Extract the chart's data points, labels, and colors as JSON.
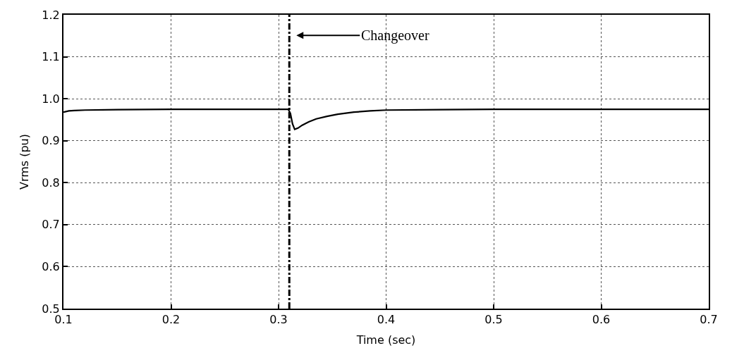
{
  "chart_data": {
    "type": "line",
    "xlabel": "Time (sec)",
    "ylabel": "Vrms (pu)",
    "x": [
      0.1,
      0.105,
      0.11,
      0.12,
      0.15,
      0.2,
      0.25,
      0.3,
      0.309,
      0.311,
      0.313,
      0.315,
      0.318,
      0.322,
      0.328,
      0.335,
      0.345,
      0.355,
      0.37,
      0.385,
      0.4,
      0.45,
      0.5,
      0.6,
      0.7
    ],
    "series": [
      {
        "color": "#000000",
        "values": [
          0.968,
          0.971,
          0.972,
          0.973,
          0.974,
          0.975,
          0.975,
          0.975,
          0.975,
          0.965,
          0.94,
          0.927,
          0.93,
          0.937,
          0.945,
          0.952,
          0.958,
          0.963,
          0.968,
          0.971,
          0.973,
          0.974,
          0.975,
          0.975,
          0.975
        ]
      }
    ],
    "xlim": [
      0.1,
      0.7
    ],
    "xticks": [
      {
        "value": 0.1,
        "label": "0.1"
      },
      {
        "value": 0.2,
        "label": "0.2"
      },
      {
        "value": 0.3,
        "label": "0.3"
      },
      {
        "value": 0.4,
        "label": "0.4"
      },
      {
        "value": 0.5,
        "label": "0.5"
      },
      {
        "value": 0.6,
        "label": "0.6"
      },
      {
        "value": 0.7,
        "label": "0.7"
      }
    ],
    "ylim": [
      0.5,
      1.2
    ],
    "yticks": [
      {
        "value": 0.5,
        "label": "0.5"
      },
      {
        "value": 0.6,
        "label": "0.6"
      },
      {
        "value": 0.7,
        "label": "0.7"
      },
      {
        "value": 0.8,
        "label": "0.8"
      },
      {
        "value": 0.9,
        "label": "0.9"
      },
      {
        "value": 1.0,
        "label": "1.0"
      },
      {
        "value": 1.1,
        "label": "1.1"
      },
      {
        "value": 1.2,
        "label": "1.2"
      }
    ],
    "grid": true,
    "line_style": "solid",
    "marker": "none",
    "ref_lines": [
      {
        "axis": "x",
        "value": 0.31,
        "color": "#000000",
        "line_style": "dashdot",
        "label": "Changeover"
      }
    ]
  }
}
